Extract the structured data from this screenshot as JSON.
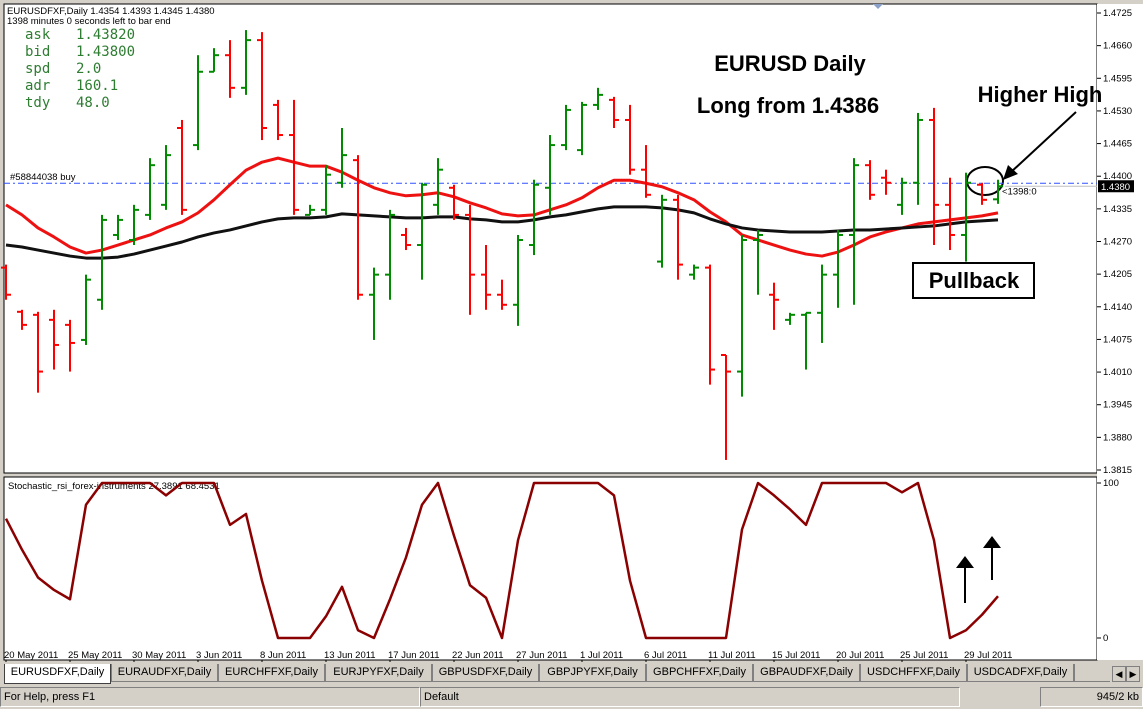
{
  "window": {
    "header": "EURUSDFXF,Daily  1.4354 1.4393 1.4345 1.4380",
    "timer": "1398 minutes 0 seconds left to bar end",
    "info": [
      [
        "ask",
        "1.43820"
      ],
      [
        "bid",
        "1.43800"
      ],
      [
        "spd",
        "2.0"
      ],
      [
        "adr",
        "160.1"
      ],
      [
        "tdy",
        "48.0"
      ]
    ],
    "tabs": [
      "EURUSDFXF,Daily",
      "EURAUDFXF,Daily",
      "EURCHFFXF,Daily",
      "EURJPYFXF,Daily",
      "GBPUSDFXF,Daily",
      "GBPJPYFXF,Daily",
      "GBPCHFFXF,Daily",
      "GBPAUDFXF,Daily",
      "USDCHFFXF,Daily",
      "USDCADFXF,Daily",
      "USD"
    ],
    "status": [
      "For Help, press F1",
      "Default",
      "945/2 kb"
    ]
  },
  "chart_data": [
    {
      "type": "ohlc",
      "categories": [
        "20 May 2011",
        null,
        null,
        null,
        "25 May 2011",
        null,
        null,
        null,
        "30 May 2011",
        null,
        null,
        null,
        "3 Jun 2011",
        null,
        null,
        null,
        "8 Jun 2011",
        null,
        null,
        null,
        "13 Jun 2011",
        null,
        null,
        null,
        "17 Jun 2011",
        null,
        null,
        null,
        "22 Jun 2011",
        null,
        null,
        null,
        "27 Jun 2011",
        null,
        null,
        null,
        "1 Jul 2011",
        null,
        null,
        null,
        "6 Jul 2011",
        null,
        null,
        null,
        "11 Jul 2011",
        null,
        null,
        null,
        "15 Jul 2011",
        null,
        null,
        null,
        "20 Jul 2011",
        null,
        null,
        null,
        "25 Jul 2011",
        null,
        null,
        null,
        "29 Jul 2011",
        null,
        null
      ],
      "open": [
        1.4218,
        1.413,
        1.4124,
        1.4114,
        1.4104,
        1.4074,
        1.4154,
        1.4283,
        1.4273,
        1.4323,
        1.4343,
        1.4496,
        1.4462,
        1.4608,
        1.4641,
        1.4576,
        1.4671,
        1.4542,
        1.4482,
        1.4323,
        1.4333,
        1.4387,
        1.4432,
        1.4164,
        1.4204,
        1.4283,
        1.4263,
        1.4343,
        1.4377,
        1.4323,
        1.4204,
        1.4164,
        1.4144,
        1.4263,
        1.4377,
        1.4462,
        1.4452,
        1.4542,
        1.4552,
        1.4512,
        1.4413,
        1.423,
        1.4353,
        1.4204,
        1.4218,
        1.4044,
        1.4011,
        1.4273,
        1.4164,
        1.4114,
        1.4124,
        1.4128,
        1.4204,
        1.4283,
        1.4422,
        1.4397,
        1.4343,
        1.4387,
        1.4512,
        1.4343,
        1.4283,
        1.4383,
        1.4354
      ],
      "high": [
        1.4224,
        1.4134,
        1.413,
        1.4134,
        1.4114,
        1.4204,
        1.4323,
        1.4323,
        1.4343,
        1.4436,
        1.4462,
        1.4512,
        1.4641,
        1.4655,
        1.4671,
        1.4691,
        1.4687,
        1.4552,
        1.4552,
        1.4343,
        1.4422,
        1.4496,
        1.4442,
        1.4218,
        1.4333,
        1.4297,
        1.4387,
        1.4436,
        1.4383,
        1.4343,
        1.4263,
        1.4194,
        1.4283,
        1.4393,
        1.4482,
        1.4542,
        1.4548,
        1.4576,
        1.4558,
        1.4542,
        1.4462,
        1.4363,
        1.4363,
        1.4224,
        1.4224,
        1.4044,
        1.4283,
        1.4293,
        1.4188,
        1.4128,
        1.4128,
        1.4224,
        1.4293,
        1.4436,
        1.4432,
        1.4413,
        1.4397,
        1.4526,
        1.4536,
        1.4397,
        1.4407,
        1.4387,
        1.4393
      ],
      "low": [
        1.4154,
        1.4094,
        1.3969,
        1.4015,
        1.4011,
        1.4064,
        1.4134,
        1.4273,
        1.4263,
        1.4313,
        1.4333,
        1.4323,
        1.4452,
        1.4608,
        1.4556,
        1.4562,
        1.4472,
        1.4472,
        1.4323,
        1.4323,
        1.4323,
        1.4377,
        1.4154,
        1.4074,
        1.4154,
        1.4253,
        1.4194,
        1.4323,
        1.4313,
        1.4124,
        1.4134,
        1.4134,
        1.4102,
        1.4243,
        1.4323,
        1.4452,
        1.4442,
        1.4532,
        1.4496,
        1.4403,
        1.4357,
        1.4218,
        1.4194,
        1.4194,
        1.3985,
        1.3835,
        1.3961,
        1.4164,
        1.4094,
        1.4104,
        1.4015,
        1.4068,
        1.4138,
        1.4144,
        1.4353,
        1.4363,
        1.4323,
        1.4343,
        1.4263,
        1.4253,
        1.423,
        1.4343,
        1.4345
      ],
      "close": [
        1.4164,
        1.4104,
        1.4011,
        1.4064,
        1.4068,
        1.4194,
        1.4313,
        1.4313,
        1.4333,
        1.4422,
        1.4442,
        1.4333,
        1.4608,
        1.4641,
        1.4576,
        1.4671,
        1.4496,
        1.4482,
        1.4333,
        1.4333,
        1.4403,
        1.4442,
        1.4164,
        1.4204,
        1.4323,
        1.4263,
        1.4383,
        1.4413,
        1.4323,
        1.4204,
        1.4164,
        1.4144,
        1.4273,
        1.4383,
        1.4462,
        1.4532,
        1.4542,
        1.4562,
        1.4512,
        1.4413,
        1.4363,
        1.4353,
        1.4224,
        1.4218,
        1.4015,
        1.4011,
        1.4273,
        1.4283,
        1.4154,
        1.4124,
        1.4128,
        1.4204,
        1.4283,
        1.4422,
        1.4363,
        1.4387,
        1.4387,
        1.4512,
        1.4343,
        1.4283,
        1.4387,
        1.4353,
        1.438
      ],
      "up_color": "#008a00",
      "down_color": "#ff0000",
      "series": [
        {
          "color": "#ee1111",
          "values": [
            1.4343,
            1.4323,
            1.4297,
            1.4279,
            1.4259,
            1.4247,
            1.4253,
            1.4263,
            1.4273,
            1.4283,
            1.4297,
            1.4309,
            1.4327,
            1.4353,
            1.4383,
            1.4412,
            1.4428,
            1.4436,
            1.4428,
            1.442,
            1.442,
            1.4408,
            1.4392,
            1.4377,
            1.4367,
            1.4361,
            1.4363,
            1.4367,
            1.4359,
            1.4347,
            1.4337,
            1.4325,
            1.4321,
            1.4323,
            1.4333,
            1.4343,
            1.4357,
            1.4377,
            1.4392,
            1.4392,
            1.4386,
            1.4379,
            1.4367,
            1.4353,
            1.4329,
            1.4309,
            1.4283,
            1.4273,
            1.4263,
            1.4253,
            1.4245,
            1.4241,
            1.4249,
            1.4263,
            1.4279,
            1.4289,
            1.4297,
            1.4305,
            1.4309,
            1.4313,
            1.4317,
            1.4321,
            1.4327
          ]
        },
        {
          "color": "#111111",
          "values": [
            1.4263,
            1.4259,
            1.4253,
            1.4247,
            1.4241,
            1.4237,
            1.4237,
            1.4239,
            1.4245,
            1.4253,
            1.4261,
            1.4269,
            1.4279,
            1.4287,
            1.4293,
            1.4301,
            1.4309,
            1.4315,
            1.4317,
            1.4317,
            1.4319,
            1.4325,
            1.4323,
            1.4321,
            1.4319,
            1.4317,
            1.4317,
            1.4319,
            1.4319,
            1.4315,
            1.4313,
            1.4309,
            1.4309,
            1.4313,
            1.4319,
            1.4323,
            1.4329,
            1.4335,
            1.4339,
            1.4339,
            1.4339,
            1.4337,
            1.4333,
            1.4327,
            1.4315,
            1.4305,
            1.4297,
            1.4293,
            1.4291,
            1.4289,
            1.4289,
            1.4289,
            1.4291,
            1.4293,
            1.4293,
            1.4295,
            1.4297,
            1.4299,
            1.4301,
            1.4305,
            1.4309,
            1.4311,
            1.4313
          ]
        }
      ],
      "ylim": [
        1.3815,
        1.4725
      ],
      "yticks": [
        1.4725,
        {
          "value": 1.466,
          "label": "1.4660"
        },
        1.4595,
        {
          "value": 1.453,
          "label": "1.4530"
        },
        1.4465,
        {
          "value": 1.44,
          "label": "1.4400"
        },
        1.4335,
        {
          "value": 1.427,
          "label": "1.4270"
        },
        1.4205,
        {
          "value": 1.414,
          "label": "1.4140"
        },
        1.4075,
        {
          "value": 1.401,
          "label": "1.4010"
        },
        1.3945,
        {
          "value": 1.388,
          "label": "1.3880"
        },
        1.3815
      ],
      "order": {
        "label": "#58844038 buy",
        "value": 1.4386,
        "color": "#3050ff"
      },
      "last_price": {
        "value": 1.438,
        "label": "1.4380"
      },
      "bar_timer": "<1398:0",
      "annotations": [
        "EURUSD Daily",
        "Long from 1.4386",
        "Higher High",
        "Pullback"
      ]
    },
    {
      "type": "line",
      "title": "Stochastic_rsi_forex-instruments 27.3891 68.4531",
      "values": [
        77,
        57,
        39,
        31,
        25,
        86,
        100,
        100,
        100,
        100,
        92,
        100,
        100,
        100,
        73,
        80,
        37,
        0,
        0,
        0,
        14,
        33,
        5,
        0,
        25,
        52,
        86,
        100,
        66,
        34,
        26,
        0,
        63,
        100,
        100,
        100,
        100,
        100,
        92,
        37,
        0,
        0,
        0,
        0,
        0,
        0,
        70,
        100,
        92,
        83,
        73,
        100,
        100,
        100,
        100,
        100,
        94,
        100,
        63,
        0,
        5,
        15,
        27
      ],
      "color": "#8b0000",
      "ylim": [
        0,
        100
      ],
      "yticks": [
        100,
        0
      ]
    }
  ]
}
